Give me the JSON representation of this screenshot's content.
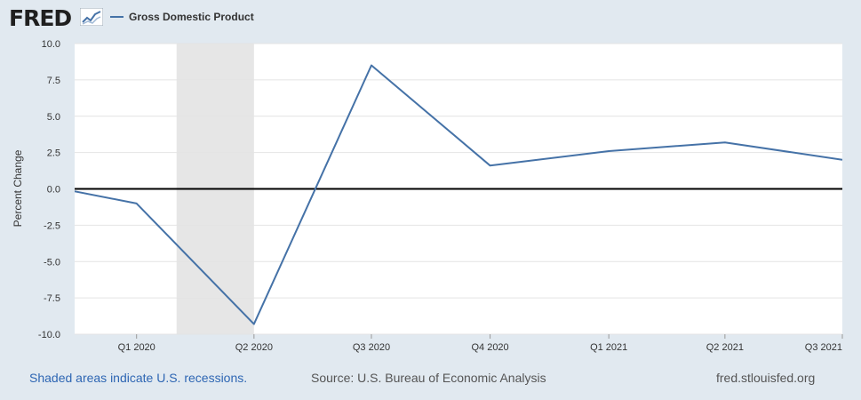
{
  "header": {
    "logo_text": "FRED",
    "logo_icon": "trend-line-icon",
    "legend_label": "Gross Domestic Product"
  },
  "chart_data": {
    "type": "line",
    "ylabel": "Percent Change",
    "ylim": [
      -10,
      10
    ],
    "y_ticks": [
      "10.0",
      "7.5",
      "5.0",
      "2.5",
      "0.0",
      "-2.5",
      "-5.0",
      "-7.5",
      "-10.0"
    ],
    "y_tick_values": [
      10,
      7.5,
      5,
      2.5,
      0,
      -2.5,
      -5,
      -7.5,
      -10
    ],
    "x_tick_labels": [
      "Q1 2020",
      "Q2 2020",
      "Q3 2020",
      "Q4 2020",
      "Q1 2021",
      "Q2 2021",
      "Q3 2021"
    ],
    "x_tick_dates": [
      "2020-01-01",
      "2020-04-01",
      "2020-07-01",
      "2020-10-01",
      "2021-01-01",
      "2021-04-01",
      "2021-07-01"
    ],
    "xlim": [
      "2019-11-14",
      "2021-07-01"
    ],
    "series": [
      {
        "color": "#4572a7",
        "points": [
          {
            "x": "2019-10-01",
            "y": 0.6
          },
          {
            "x": "2020-01-01",
            "y": -1.0
          },
          {
            "x": "2020-04-01",
            "y": -9.3
          },
          {
            "x": "2020-07-01",
            "y": 8.5
          },
          {
            "x": "2020-10-01",
            "y": 1.6
          },
          {
            "x": "2021-01-01",
            "y": 2.6
          },
          {
            "x": "2021-04-01",
            "y": 3.2
          },
          {
            "x": "2021-07-01",
            "y": 2.0
          }
        ]
      }
    ],
    "recessions": [
      {
        "start": "2020-02-01",
        "end": "2020-04-01"
      }
    ],
    "recession_color": "#e6e6e6",
    "grid": true,
    "zero_line": true
  },
  "footer": {
    "recession_note": "Shaded areas indicate U.S. recessions.",
    "source": "Source: U.S. Bureau of Economic Analysis",
    "link": "fred.stlouisfed.org"
  },
  "colors": {
    "background": "#e1e9f0",
    "plot_background": "#ffffff",
    "recession_link": "#2e66b3"
  }
}
